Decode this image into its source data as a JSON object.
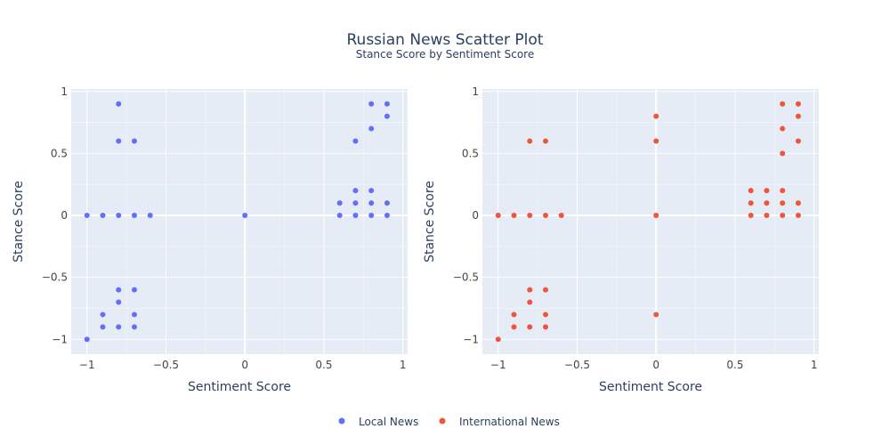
{
  "title": "Russian News Scatter Plot",
  "subtitle": "Stance Score by Sentiment Score",
  "colors": {
    "local": "#636efa",
    "international": "#ef553b",
    "plot_bg": "#e5ecf6",
    "text": "#2a3f5f",
    "tick": "#444444"
  },
  "chart_data": [
    {
      "type": "scatter",
      "xlabel": "Sentiment Score",
      "ylabel": "Stance Score",
      "xlim": [
        -1.1,
        1.03
      ],
      "ylim": [
        -1.12,
        1.02
      ],
      "xticks": [
        -1,
        -0.5,
        0,
        0.5,
        1
      ],
      "xtick_labels": [
        "−1",
        "−0.5",
        "0",
        "0.5",
        "1"
      ],
      "yticks": [
        -1,
        -0.5,
        0,
        0.5,
        1
      ],
      "ytick_labels": [
        "−1",
        "−0.5",
        "0",
        "0.5",
        "1"
      ],
      "series": [
        {
          "name": "Local News",
          "color": "#636efa",
          "points": [
            [
              -1,
              0
            ],
            [
              -1,
              -1
            ],
            [
              -0.9,
              0
            ],
            [
              -0.9,
              -0.8
            ],
            [
              -0.9,
              -0.9
            ],
            [
              -0.8,
              0.9
            ],
            [
              -0.8,
              0.6
            ],
            [
              -0.8,
              0
            ],
            [
              -0.8,
              -0.6
            ],
            [
              -0.8,
              -0.7
            ],
            [
              -0.8,
              -0.9
            ],
            [
              -0.7,
              0.6
            ],
            [
              -0.7,
              0
            ],
            [
              -0.7,
              -0.6
            ],
            [
              -0.7,
              -0.8
            ],
            [
              -0.7,
              -0.9
            ],
            [
              -0.6,
              0
            ],
            [
              0,
              0
            ],
            [
              0.6,
              0.1
            ],
            [
              0.6,
              0
            ],
            [
              0.7,
              0.6
            ],
            [
              0.7,
              0.2
            ],
            [
              0.7,
              0.1
            ],
            [
              0.7,
              0
            ],
            [
              0.8,
              0.9
            ],
            [
              0.8,
              0.7
            ],
            [
              0.8,
              0.2
            ],
            [
              0.8,
              0.1
            ],
            [
              0.8,
              0
            ],
            [
              0.9,
              0.9
            ],
            [
              0.9,
              0.8
            ],
            [
              0.9,
              0.1
            ],
            [
              0.9,
              0
            ]
          ]
        }
      ]
    },
    {
      "type": "scatter",
      "xlabel": "Sentiment Score",
      "ylabel": "Stance Score",
      "xlim": [
        -1.1,
        1.03
      ],
      "ylim": [
        -1.12,
        1.02
      ],
      "xticks": [
        -1,
        -0.5,
        0,
        0.5,
        1
      ],
      "xtick_labels": [
        "−1",
        "−0.5",
        "0",
        "0.5",
        "1"
      ],
      "yticks": [
        -1,
        -0.5,
        0,
        0.5,
        1
      ],
      "ytick_labels": [
        "−1",
        "−0.5",
        "0",
        "0.5",
        "1"
      ],
      "series": [
        {
          "name": "International News",
          "color": "#ef553b",
          "points": [
            [
              -1,
              0
            ],
            [
              -1,
              -1
            ],
            [
              -0.9,
              0
            ],
            [
              -0.9,
              -0.8
            ],
            [
              -0.9,
              -0.9
            ],
            [
              -0.8,
              0.6
            ],
            [
              -0.8,
              0
            ],
            [
              -0.8,
              -0.6
            ],
            [
              -0.8,
              -0.7
            ],
            [
              -0.8,
              -0.9
            ],
            [
              -0.7,
              0.6
            ],
            [
              -0.7,
              0
            ],
            [
              -0.7,
              -0.6
            ],
            [
              -0.7,
              -0.8
            ],
            [
              -0.7,
              -0.9
            ],
            [
              -0.6,
              0
            ],
            [
              0,
              0.8
            ],
            [
              0,
              0.6
            ],
            [
              0,
              0
            ],
            [
              0,
              -0.8
            ],
            [
              0.6,
              0.2
            ],
            [
              0.6,
              0.1
            ],
            [
              0.6,
              0
            ],
            [
              0.7,
              0.2
            ],
            [
              0.7,
              0.1
            ],
            [
              0.7,
              0
            ],
            [
              0.8,
              0.9
            ],
            [
              0.8,
              0.7
            ],
            [
              0.8,
              0.5
            ],
            [
              0.8,
              0.2
            ],
            [
              0.8,
              0.1
            ],
            [
              0.8,
              0
            ],
            [
              0.9,
              0.9
            ],
            [
              0.9,
              0.8
            ],
            [
              0.9,
              0.6
            ],
            [
              0.9,
              0.1
            ],
            [
              0.9,
              0
            ]
          ]
        }
      ]
    }
  ],
  "legend": [
    {
      "label": "Local News",
      "color": "#636efa"
    },
    {
      "label": "International News",
      "color": "#ef553b"
    }
  ]
}
